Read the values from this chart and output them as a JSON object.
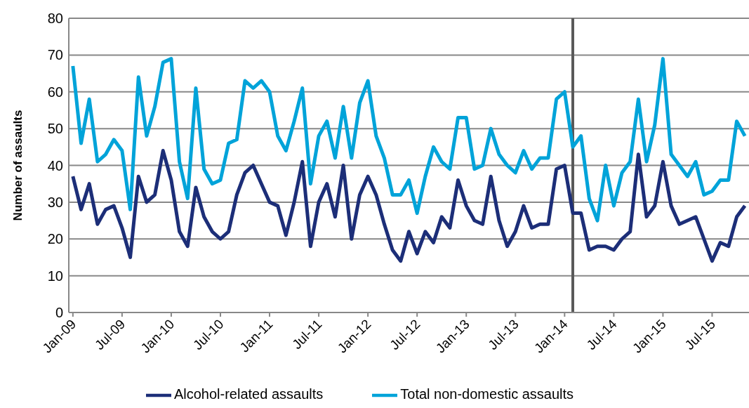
{
  "chart_data": {
    "type": "line",
    "ylabel": "Number of assaults",
    "x": [
      "2009-01",
      "2009-02",
      "2009-03",
      "2009-04",
      "2009-05",
      "2009-06",
      "2009-07",
      "2009-08",
      "2009-09",
      "2009-10",
      "2009-11",
      "2009-12",
      "2010-01",
      "2010-02",
      "2010-03",
      "2010-04",
      "2010-05",
      "2010-06",
      "2010-07",
      "2010-08",
      "2010-09",
      "2010-10",
      "2010-11",
      "2010-12",
      "2011-01",
      "2011-02",
      "2011-03",
      "2011-04",
      "2011-05",
      "2011-06",
      "2011-07",
      "2011-08",
      "2011-09",
      "2011-10",
      "2011-11",
      "2011-12",
      "2012-01",
      "2012-02",
      "2012-03",
      "2012-04",
      "2012-05",
      "2012-06",
      "2012-07",
      "2012-08",
      "2012-09",
      "2012-10",
      "2012-11",
      "2012-12",
      "2013-01",
      "2013-02",
      "2013-03",
      "2013-04",
      "2013-05",
      "2013-06",
      "2013-07",
      "2013-08",
      "2013-09",
      "2013-10",
      "2013-11",
      "2013-12",
      "2014-01",
      "2014-02",
      "2014-03",
      "2014-04",
      "2014-05",
      "2014-06",
      "2014-07",
      "2014-08",
      "2014-09",
      "2014-10",
      "2014-11",
      "2014-12",
      "2015-01",
      "2015-02",
      "2015-03",
      "2015-04",
      "2015-05",
      "2015-06",
      "2015-07",
      "2015-08",
      "2015-09",
      "2015-10",
      "2015-11"
    ],
    "series": [
      {
        "name": "Alcohol-related assaults",
        "color": "#1c2e78",
        "values": [
          37,
          28,
          35,
          24,
          28,
          29,
          23,
          15,
          37,
          30,
          32,
          44,
          36,
          22,
          18,
          34,
          26,
          22,
          20,
          22,
          32,
          38,
          40,
          35,
          30,
          29,
          21,
          30,
          41,
          18,
          30,
          35,
          26,
          40,
          20,
          32,
          37,
          32,
          24,
          17,
          14,
          22,
          16,
          22,
          19,
          26,
          23,
          36,
          29,
          25,
          24,
          37,
          25,
          18,
          22,
          29,
          23,
          24,
          24,
          39,
          40,
          27,
          27,
          17,
          18,
          18,
          17,
          20,
          22,
          43,
          26,
          29,
          41,
          29,
          24,
          25,
          26,
          20,
          14,
          19,
          18,
          26,
          29
        ]
      },
      {
        "name": "Total non-domestic assaults",
        "color": "#00a3d9",
        "values": [
          67,
          46,
          58,
          41,
          43,
          47,
          44,
          28,
          64,
          48,
          56,
          68,
          69,
          41,
          31,
          61,
          39,
          35,
          36,
          46,
          47,
          63,
          61,
          63,
          60,
          48,
          44,
          52,
          61,
          35,
          48,
          52,
          42,
          56,
          42,
          57,
          63,
          48,
          42,
          32,
          32,
          36,
          27,
          37,
          45,
          41,
          39,
          53,
          53,
          39,
          40,
          50,
          43,
          40,
          38,
          44,
          39,
          42,
          42,
          58,
          60,
          45,
          48,
          31,
          25,
          40,
          29,
          38,
          41,
          58,
          41,
          51,
          69,
          43,
          40,
          37,
          41,
          32,
          33,
          36,
          36,
          52,
          48
        ]
      }
    ],
    "xlim": [
      "2008-12-16",
      "2015-11-16"
    ],
    "xticks": [
      {
        "value": "2009-01",
        "label": "Jan-09"
      },
      {
        "value": "2009-07",
        "label": "Jul-09"
      },
      {
        "value": "2010-01",
        "label": "Jan-10"
      },
      {
        "value": "2010-07",
        "label": "Jul-10"
      },
      {
        "value": "2011-01",
        "label": "Jan-11"
      },
      {
        "value": "2011-07",
        "label": "Jul-11"
      },
      {
        "value": "2012-01",
        "label": "Jan-12"
      },
      {
        "value": "2012-07",
        "label": "Jul-12"
      },
      {
        "value": "2013-01",
        "label": "Jan-13"
      },
      {
        "value": "2013-07",
        "label": "Jul-13"
      },
      {
        "value": "2014-01",
        "label": "Jan-14"
      },
      {
        "value": "2014-07",
        "label": "Jul-14"
      },
      {
        "value": "2015-01",
        "label": "Jan-15"
      },
      {
        "value": "2015-07",
        "label": "Jul-15"
      }
    ],
    "ylim": [
      0,
      80
    ],
    "yticks": [
      0,
      10,
      20,
      30,
      40,
      50,
      60,
      70,
      80
    ],
    "ref_lines": [
      {
        "axis": "x",
        "value": "2014-02",
        "color": "#595959"
      }
    ],
    "grid": "y",
    "legend": "bottom"
  }
}
